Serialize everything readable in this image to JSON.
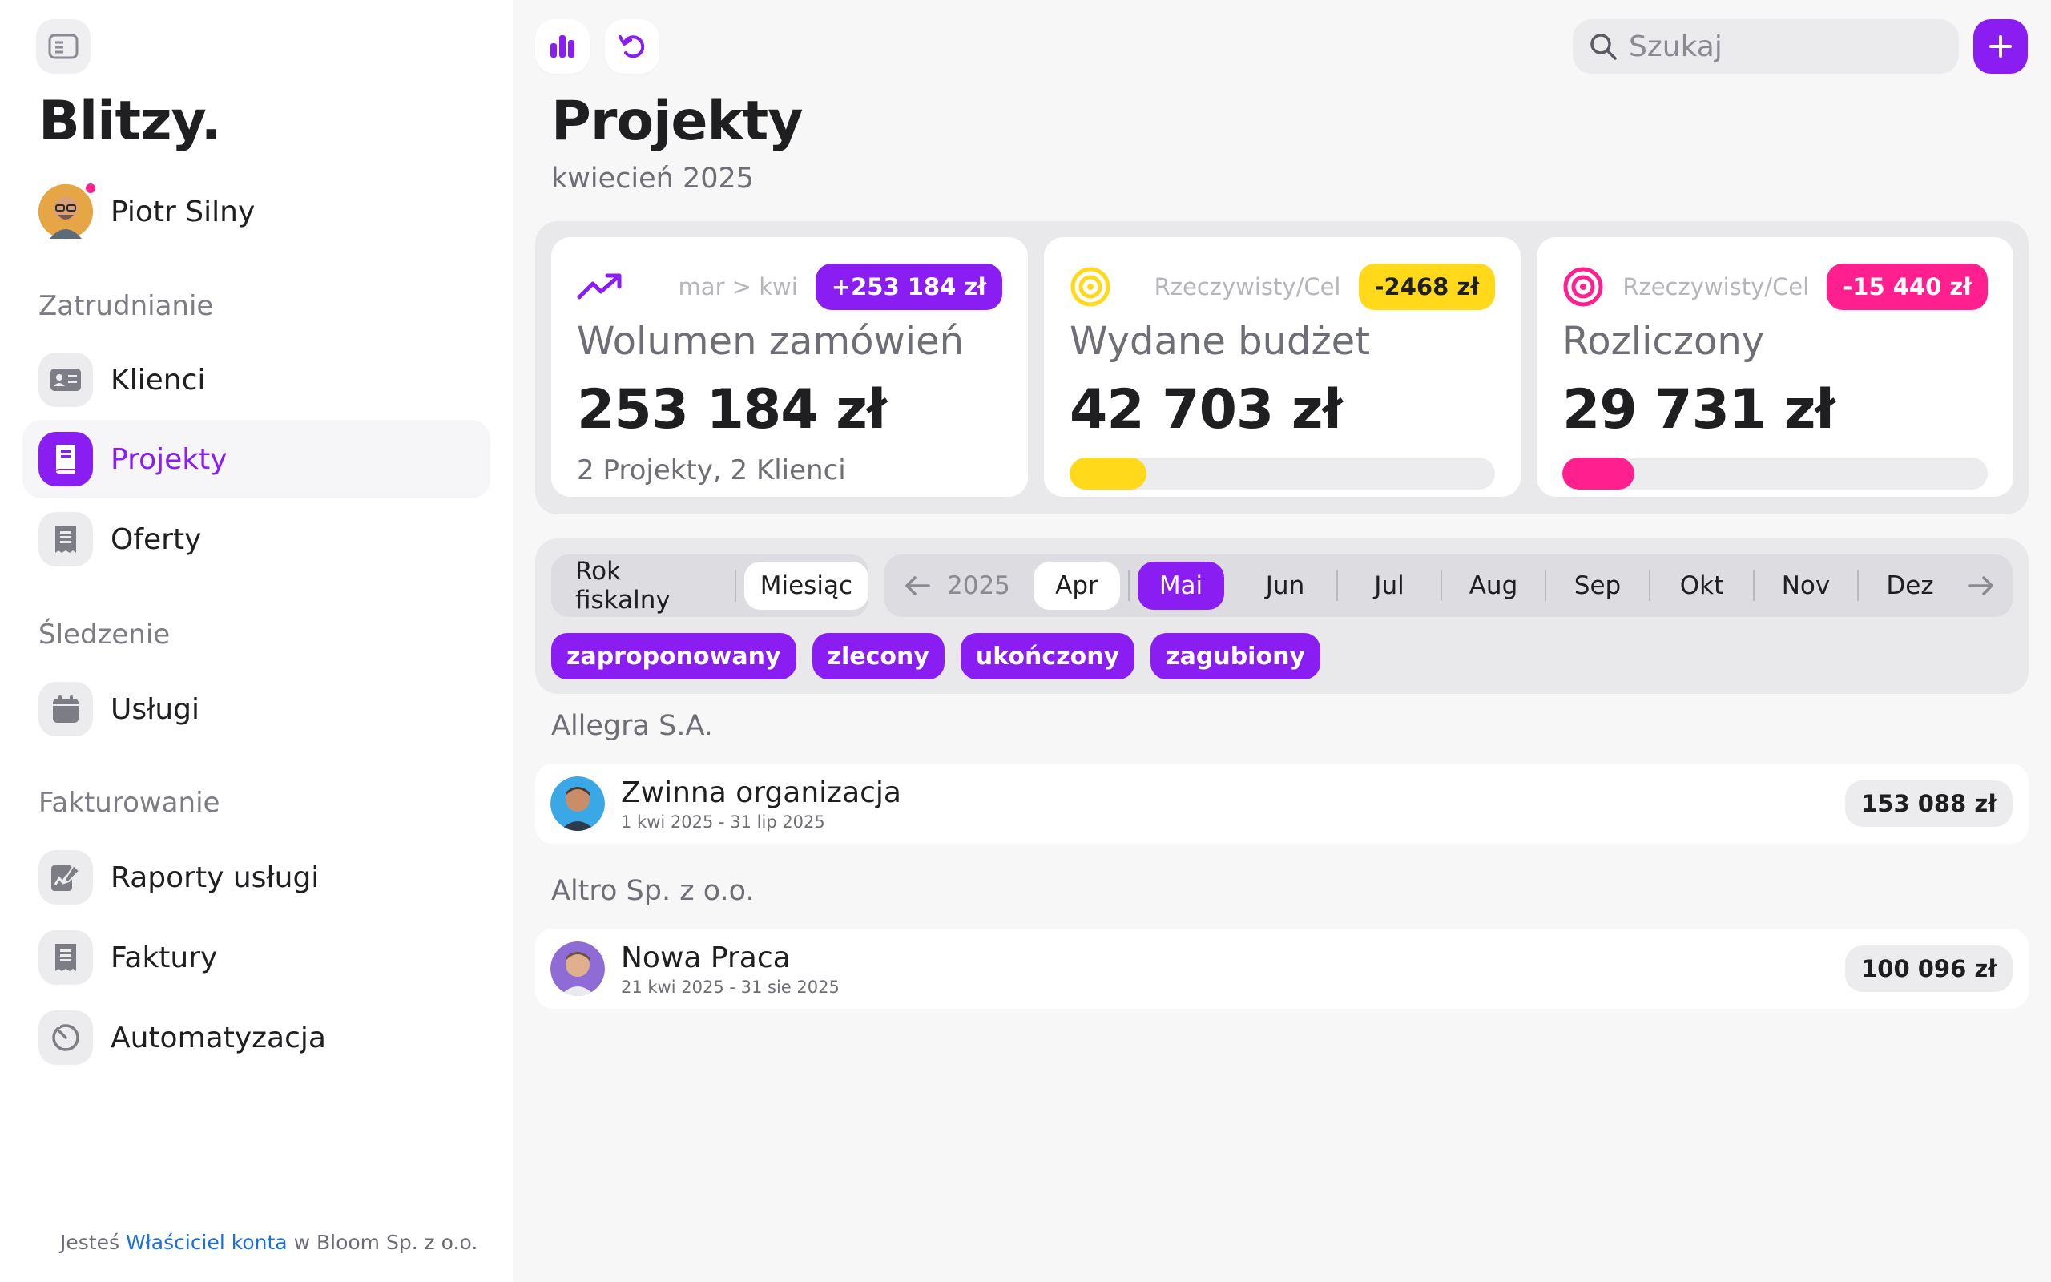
{
  "brand": "Blitzy.",
  "user": {
    "name": "Piotr Silny"
  },
  "sidebar": {
    "sections": [
      {
        "title": "Zatrudnianie"
      },
      {
        "title": "Śledzenie"
      },
      {
        "title": "Fakturowanie"
      }
    ],
    "items": [
      {
        "label": "Klienci",
        "icon": "id-card-icon"
      },
      {
        "label": "Projekty",
        "icon": "book-icon",
        "active": true
      },
      {
        "label": "Oferty",
        "icon": "receipt-icon"
      },
      {
        "label": "Usługi",
        "icon": "calendar-icon"
      },
      {
        "label": "Raporty usługi",
        "icon": "report-edit-icon"
      },
      {
        "label": "Faktury",
        "icon": "invoice-icon"
      },
      {
        "label": "Automatyzacja",
        "icon": "timer-icon"
      }
    ],
    "footer": {
      "prefix": "Jesteś",
      "role": "Właściciel konta",
      "suffix": "w Bloom Sp. z o.o."
    }
  },
  "toolbar": {
    "search_placeholder": "Szukaj"
  },
  "page": {
    "title": "Projekty",
    "subtitle": "kwiecień 2025"
  },
  "kpis": [
    {
      "hint": "mar > kwi",
      "badge": "+253 184 zł",
      "label": "Wolumen zamówień",
      "value": "253 184 zł",
      "sub": "2 Projekty, 2 Klienci",
      "color": "#8a1df1"
    },
    {
      "hint": "Rzeczywisty/Cel",
      "badge": "-2468 zł",
      "label": "Wydane budżet",
      "value": "42 703 zł",
      "progress": 0.18,
      "color": "#ffd91a"
    },
    {
      "hint": "Rzeczywisty/Cel",
      "badge": "-15 440 zł",
      "label": "Rozliczony",
      "value": "29 731 zł",
      "progress": 0.17,
      "color": "#ff1f8e"
    }
  ],
  "filters": {
    "period_options": [
      "Rok fiskalny",
      "Miesiąc"
    ],
    "year": "2025",
    "months": [
      "Apr",
      "Mai",
      "Jun",
      "Jul",
      "Aug",
      "Sep",
      "Okt",
      "Nov",
      "Dez"
    ],
    "status_chips": [
      "zaproponowany",
      "zlecony",
      "ukończony",
      "zagubiony"
    ]
  },
  "groups": [
    {
      "client": "Allegra S.A.",
      "project": {
        "name": "Zwinna organizacja",
        "dates": "1 kwi 2025 - 31 lip 2025",
        "amount": "153 088 zł"
      }
    },
    {
      "client": "Altro Sp. z o.o.",
      "project": {
        "name": "Nowa Praca",
        "dates": "21 kwi 2025 - 31 sie 2025",
        "amount": "100 096 zł"
      }
    }
  ]
}
